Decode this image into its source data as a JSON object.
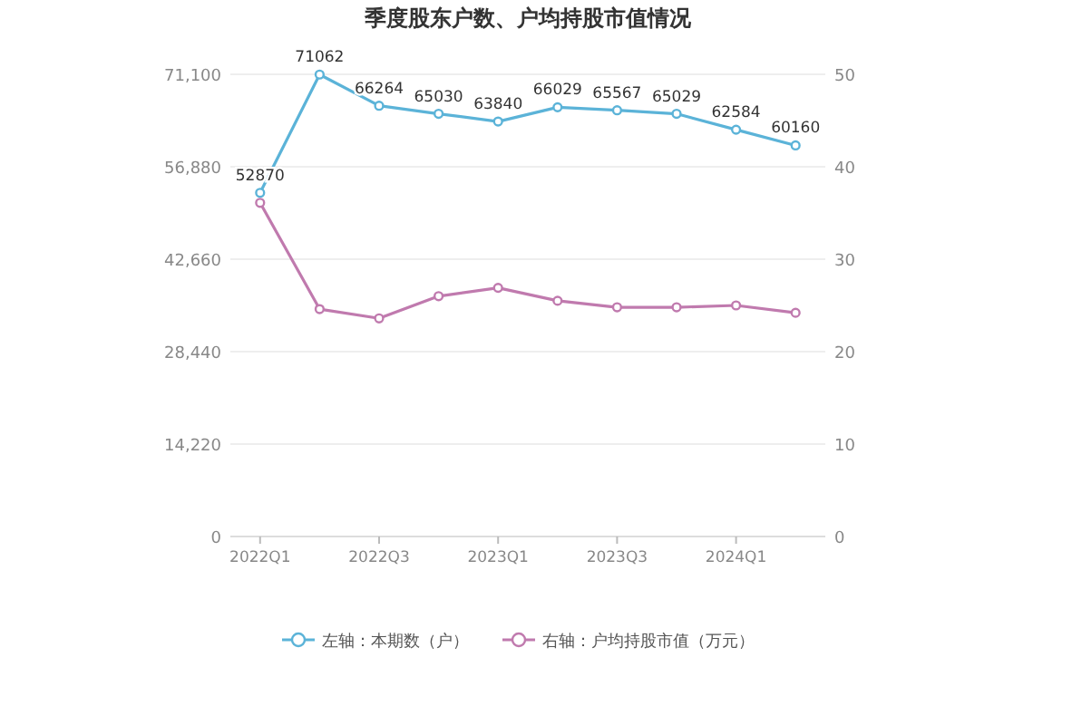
{
  "chart_data": {
    "type": "line",
    "title": "季度股东户数、户均持股市值情况",
    "categories": [
      "2022Q1",
      null,
      "2022Q3",
      null,
      "2023Q1",
      null,
      "2023Q3",
      null,
      "2024Q1",
      null
    ],
    "series": [
      {
        "name": "左轴：本期数（户）",
        "color": "#5bb3d8",
        "values": [
          52870,
          71062,
          66264,
          65030,
          63840,
          66029,
          65567,
          65029,
          62584,
          60160
        ],
        "value_labels": [
          "52870",
          "71062",
          "66264",
          "65030",
          "63840",
          "66029",
          "65567",
          "65029",
          "62584",
          "60160"
        ]
      },
      {
        "name": "右轴：户均持股市值（万元）",
        "color": "#c07aae",
        "axis": "y2",
        "values": [
          36.1,
          24.6,
          23.6,
          26.0,
          26.9,
          25.5,
          24.8,
          24.8,
          25.0,
          24.2
        ]
      }
    ],
    "ylim": [
      0,
      71100
    ],
    "yticks": [
      0,
      {
        "value": 14220,
        "label": "14,220"
      },
      {
        "value": 28440,
        "label": "28,440"
      },
      {
        "value": 42660,
        "label": "42,660"
      },
      {
        "value": 56880,
        "label": "56,880"
      },
      {
        "value": 71100,
        "label": "71,100"
      }
    ],
    "y2lim": [
      0,
      50
    ],
    "y2ticks": [
      0,
      10,
      20,
      30,
      40,
      50
    ],
    "grid": "y",
    "legend": "bottom",
    "marker": "circle",
    "line_style": "solid"
  }
}
